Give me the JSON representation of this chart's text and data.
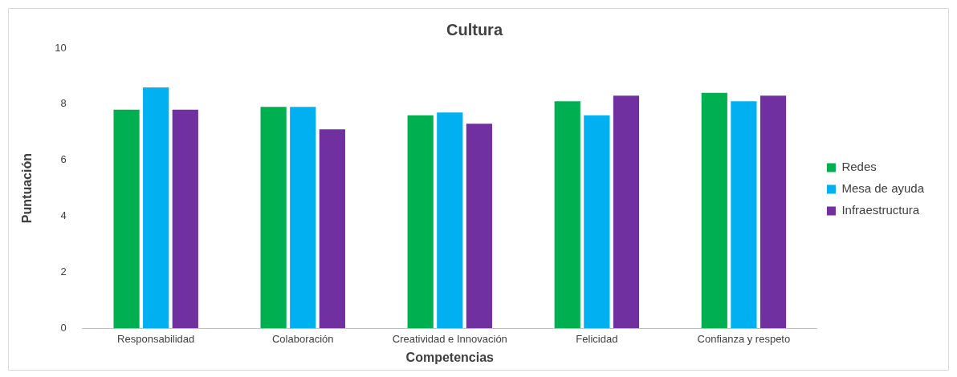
{
  "chart_data": {
    "type": "bar",
    "title": "Cultura",
    "xlabel": "Competencias",
    "ylabel": "Puntuación",
    "categories": [
      "Responsabilidad",
      "Colaboración",
      "Creatividad e Innovación",
      "Felicidad",
      "Confianza y respeto"
    ],
    "series": [
      {
        "name": "Redes",
        "color": "#00b050",
        "values": [
          7.8,
          7.9,
          7.6,
          8.1,
          8.4
        ]
      },
      {
        "name": "Mesa de ayuda",
        "color": "#00b0f0",
        "values": [
          8.6,
          7.9,
          7.7,
          7.6,
          8.1
        ]
      },
      {
        "name": "Infraestructura",
        "color": "#7030a0",
        "values": [
          7.8,
          7.1,
          7.3,
          8.3,
          8.3
        ]
      }
    ],
    "ylim": [
      0,
      10
    ],
    "yticks": [
      0,
      2,
      4,
      6,
      8,
      10
    ],
    "grid": false,
    "legend": "right"
  }
}
